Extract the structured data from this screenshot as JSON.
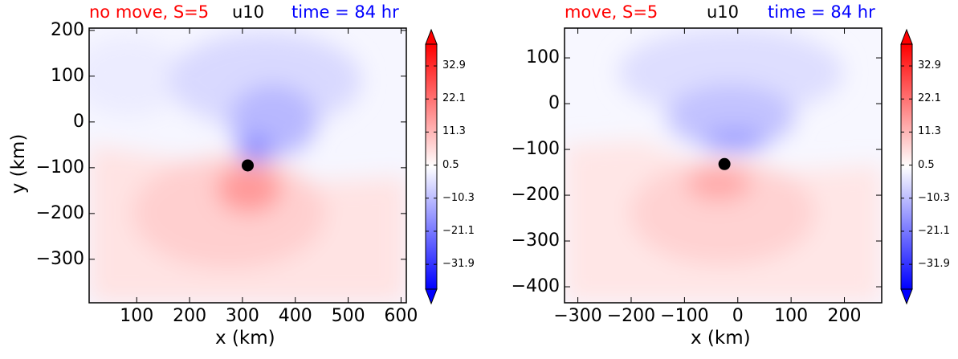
{
  "chart_data": [
    {
      "type": "heatmap",
      "title_left": "no move, S=5",
      "title_center": "u10",
      "title_right": "time = 84 hr",
      "xlabel": "x (km)",
      "ylabel": "y (km)",
      "xlim": [
        10,
        610
      ],
      "ylim": [
        -395,
        205
      ],
      "xticks": [
        100,
        200,
        300,
        400,
        500,
        600
      ],
      "yticks": [
        200,
        100,
        0,
        -100,
        -200,
        -300
      ],
      "center_marker": {
        "x": 310,
        "y": -95
      },
      "colorbar": {
        "ticks": [
          "32.9",
          "22.1",
          "11.3",
          "0.5",
          "−10.3",
          "−21.1",
          "−31.9"
        ],
        "range": [
          -40,
          40
        ],
        "colormap": "bwr",
        "extend": "both"
      }
    },
    {
      "type": "heatmap",
      "title_left": "move, S=5",
      "title_center": "u10",
      "title_right": "time = 84 hr",
      "xlabel": "x (km)",
      "ylabel": "",
      "xlim": [
        -325,
        270
      ],
      "ylim": [
        -435,
        165
      ],
      "xticks": [
        -300,
        -200,
        -100,
        0,
        100,
        200
      ],
      "yticks": [
        100,
        0,
        -100,
        -200,
        -300,
        -400
      ],
      "center_marker": {
        "x": -25,
        "y": -132
      },
      "colorbar": {
        "ticks": [
          "32.9",
          "22.1",
          "11.3",
          "0.5",
          "−10.3",
          "−21.1",
          "−31.9"
        ],
        "range": [
          -40,
          40
        ],
        "colormap": "bwr",
        "extend": "both"
      }
    }
  ],
  "colors": {
    "title_left": "#ff0000",
    "title_center": "#000000",
    "title_right": "#0000ff"
  }
}
